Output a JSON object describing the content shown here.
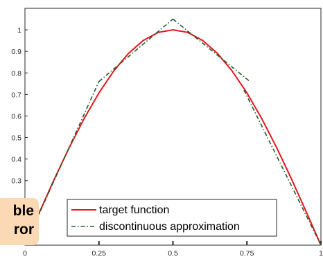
{
  "chart_data": {
    "type": "line",
    "xlim": [
      0,
      1
    ],
    "ylim": [
      0,
      1.1
    ],
    "x_ticks": [
      "0",
      "0.25",
      "0.5",
      "0.75",
      "1"
    ],
    "y_ticks": [
      "0.3",
      "0.4",
      "0.5",
      "0.6",
      "0.7",
      "0.8",
      "0.9",
      "1"
    ],
    "grid": false,
    "legend_position": "bottom-right",
    "series": [
      {
        "name": "target function",
        "style": "solid",
        "color": "#e8141c",
        "x": [
          0,
          0.05,
          0.1,
          0.15,
          0.2,
          0.25,
          0.3,
          0.35,
          0.4,
          0.45,
          0.5,
          0.55,
          0.6,
          0.65,
          0.7,
          0.75,
          0.8,
          0.85,
          0.9,
          0.95,
          1
        ],
        "y": [
          0,
          0.156,
          0.309,
          0.454,
          0.588,
          0.707,
          0.809,
          0.891,
          0.951,
          0.988,
          1.0,
          0.988,
          0.951,
          0.891,
          0.809,
          0.707,
          0.588,
          0.454,
          0.309,
          0.156,
          0
        ]
      },
      {
        "name": "discontinuous approximation",
        "style": "dashdot",
        "color": "#1f5c2a",
        "segments": [
          {
            "x": [
              0,
              0.25
            ],
            "y": [
              0,
              0.76
            ]
          },
          {
            "x": [
              0.25,
              0.5
            ],
            "y": [
              0.76,
              1.05
            ]
          },
          {
            "x": [
              0.5,
              0.76
            ],
            "y": [
              1.05,
              0.76
            ]
          },
          {
            "x": [
              0.74,
              1
            ],
            "y": [
              0.72,
              0
            ]
          }
        ]
      }
    ]
  },
  "overlay": {
    "line1": "ble",
    "line2": "ror"
  }
}
